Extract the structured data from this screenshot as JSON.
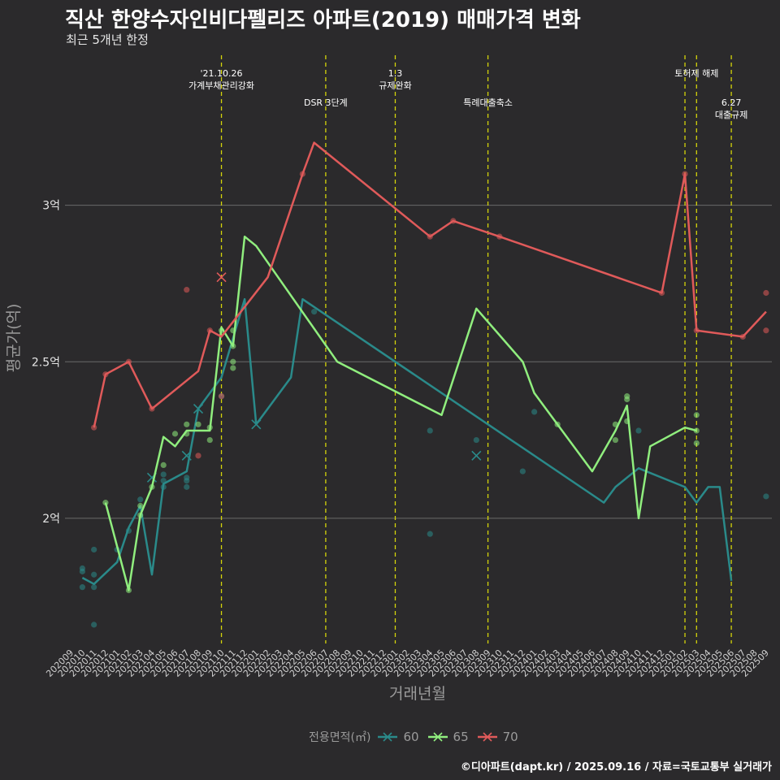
{
  "title": "직산 한양수자인비다펠리즈 아파트(2019) 매매가격 변화",
  "subtitle": "최근 5개년 한정",
  "caption": "©디아파트(dapt.kr) / 2025.09.16 / 자료=국토교통부 실거래가",
  "chart_data": {
    "type": "line",
    "xlabel": "거래년월",
    "ylabel": "평균가(억)",
    "ylim": [
      1.6,
      3.5
    ],
    "grid": true,
    "legend_position": "bottom",
    "legend_title": "전용면적(㎡)",
    "categories": [
      "202009",
      "202010",
      "202011",
      "202012",
      "202101",
      "202102",
      "202103",
      "202104",
      "202105",
      "202106",
      "202107",
      "202108",
      "202109",
      "202110",
      "202111",
      "202112",
      "202201",
      "202202",
      "202203",
      "202204",
      "202205",
      "202206",
      "202207",
      "202208",
      "202209",
      "202210",
      "202211",
      "202212",
      "202301",
      "202302",
      "202303",
      "202304",
      "202305",
      "202306",
      "202307",
      "202308",
      "202309",
      "202310",
      "202311",
      "202312",
      "202401",
      "202402",
      "202403",
      "202404",
      "202405",
      "202406",
      "202407",
      "202408",
      "202409",
      "202410",
      "202411",
      "202412",
      "202501",
      "202502",
      "202503",
      "202504",
      "202505",
      "202506",
      "202507",
      "202508",
      "202509"
    ],
    "yticks": [
      {
        "value": 2.0,
        "label": "2억"
      },
      {
        "value": 2.5,
        "label": "2.5억"
      },
      {
        "value": 3.0,
        "label": "3억"
      }
    ],
    "events": [
      {
        "x": "202110",
        "label": "'21.10.26\n가계부채관리강화",
        "level": 0
      },
      {
        "x": "202207",
        "label": "DSR 3단계",
        "level": 1
      },
      {
        "x": "202301",
        "label": "1.3\n규제완화",
        "level": 0
      },
      {
        "x": "202309",
        "label": "특례대출축소",
        "level": 1
      },
      {
        "x": "202502",
        "label": "",
        "level": 0
      },
      {
        "x": "202503",
        "label": "토허제 해제",
        "level": 0
      },
      {
        "x": "202506",
        "label": "6.27\n대출규제",
        "level": 1
      }
    ],
    "series": [
      {
        "name": "60",
        "color": "#2a8a8a",
        "line": [
          [
            "202010",
            1.81
          ],
          [
            "202011",
            1.79
          ],
          [
            "202101",
            1.86
          ],
          [
            "202102",
            1.97
          ],
          [
            "202103",
            2.04
          ],
          [
            "202104",
            1.82
          ],
          [
            "202105",
            2.11
          ],
          [
            "202107",
            2.15
          ],
          [
            "202108",
            2.35
          ],
          [
            "202110",
            2.45
          ],
          [
            "202112",
            2.7
          ],
          [
            "202201",
            2.3
          ],
          [
            "202204",
            2.45
          ],
          [
            "202205",
            2.7
          ],
          [
            "202407",
            2.05
          ],
          [
            "202408",
            2.1
          ],
          [
            "202409",
            2.13
          ],
          [
            "202410",
            2.16
          ],
          [
            "202502",
            2.1
          ],
          [
            "202503",
            2.05
          ],
          [
            "202504",
            2.1
          ],
          [
            "202505",
            2.1
          ],
          [
            "202506",
            1.8
          ]
        ],
        "points": [
          [
            "202010",
            1.84
          ],
          [
            "202010",
            1.83
          ],
          [
            "202010",
            1.78
          ],
          [
            "202011",
            1.9
          ],
          [
            "202011",
            1.82
          ],
          [
            "202011",
            1.78
          ],
          [
            "202011",
            1.66
          ],
          [
            "202101",
            1.9
          ],
          [
            "202102",
            1.96
          ],
          [
            "202103",
            2.06
          ],
          [
            "202105",
            2.12
          ],
          [
            "202105",
            2.1
          ],
          [
            "202105",
            2.14
          ],
          [
            "202107",
            2.13
          ],
          [
            "202107",
            2.12
          ],
          [
            "202107",
            2.1
          ],
          [
            "202110",
            2.39
          ],
          [
            "202206",
            2.66
          ],
          [
            "202304",
            2.28
          ],
          [
            "202304",
            1.95
          ],
          [
            "202308",
            2.25
          ],
          [
            "202312",
            2.15
          ],
          [
            "202401",
            2.34
          ],
          [
            "202410",
            2.28
          ],
          [
            "202509",
            2.07
          ]
        ],
        "crosses": [
          [
            "202104",
            2.13
          ],
          [
            "202107",
            2.2
          ],
          [
            "202108",
            2.35
          ],
          [
            "202201",
            2.3
          ],
          [
            "202308",
            2.2
          ]
        ]
      },
      {
        "name": "65",
        "color": "#90ee7e",
        "line": [
          [
            "202012",
            2.05
          ],
          [
            "202102",
            1.77
          ],
          [
            "202103",
            2.01
          ],
          [
            "202104",
            2.1
          ],
          [
            "202105",
            2.26
          ],
          [
            "202106",
            2.23
          ],
          [
            "202107",
            2.28
          ],
          [
            "202109",
            2.28
          ],
          [
            "202110",
            2.61
          ],
          [
            "202111",
            2.55
          ],
          [
            "202112",
            2.9
          ],
          [
            "202201",
            2.87
          ],
          [
            "202208",
            2.5
          ],
          [
            "202305",
            2.33
          ],
          [
            "202308",
            2.67
          ],
          [
            "202312",
            2.5
          ],
          [
            "202401",
            2.4
          ],
          [
            "202406",
            2.15
          ],
          [
            "202408",
            2.28
          ],
          [
            "202409",
            2.36
          ],
          [
            "202410",
            2.0
          ],
          [
            "202411",
            2.23
          ],
          [
            "202502",
            2.29
          ],
          [
            "202503",
            2.28
          ]
        ],
        "points": [
          [
            "202012",
            2.05
          ],
          [
            "202102",
            1.77
          ],
          [
            "202103",
            2.04
          ],
          [
            "202103",
            2.01
          ],
          [
            "202104",
            2.1
          ],
          [
            "202105",
            2.17
          ],
          [
            "202106",
            2.27
          ],
          [
            "202107",
            2.3
          ],
          [
            "202107",
            2.27
          ],
          [
            "202108",
            2.3
          ],
          [
            "202109",
            2.29
          ],
          [
            "202109",
            2.25
          ],
          [
            "202110",
            2.6
          ],
          [
            "202111",
            2.6
          ],
          [
            "202111",
            2.48
          ],
          [
            "202111",
            2.5
          ],
          [
            "202111",
            2.55
          ],
          [
            "202403",
            2.3
          ],
          [
            "202408",
            2.3
          ],
          [
            "202408",
            2.25
          ],
          [
            "202409",
            2.38
          ],
          [
            "202409",
            2.39
          ],
          [
            "202409",
            2.31
          ],
          [
            "202503",
            2.33
          ],
          [
            "202503",
            2.24
          ],
          [
            "202503",
            2.28
          ]
        ],
        "crosses": []
      },
      {
        "name": "70",
        "color": "#e05a5a",
        "line": [
          [
            "202011",
            2.29
          ],
          [
            "202012",
            2.46
          ],
          [
            "202102",
            2.5
          ],
          [
            "202104",
            2.35
          ],
          [
            "202108",
            2.47
          ],
          [
            "202109",
            2.6
          ],
          [
            "202110",
            2.58
          ],
          [
            "202202",
            2.77
          ],
          [
            "202205",
            3.1
          ],
          [
            "202206",
            3.2
          ],
          [
            "202304",
            2.9
          ],
          [
            "202306",
            2.95
          ],
          [
            "202310",
            2.9
          ],
          [
            "202412",
            2.72
          ],
          [
            "202502",
            3.1
          ],
          [
            "202503",
            2.6
          ],
          [
            "202507",
            2.58
          ],
          [
            "202509",
            2.66
          ]
        ],
        "points": [
          [
            "202011",
            2.29
          ],
          [
            "202012",
            2.46
          ],
          [
            "202102",
            2.5
          ],
          [
            "202104",
            2.35
          ],
          [
            "202107",
            2.73
          ],
          [
            "202108",
            2.2
          ],
          [
            "202109",
            2.6
          ],
          [
            "202110",
            2.39
          ],
          [
            "202205",
            3.1
          ],
          [
            "202304",
            2.9
          ],
          [
            "202306",
            2.95
          ],
          [
            "202310",
            2.9
          ],
          [
            "202412",
            2.72
          ],
          [
            "202502",
            3.1
          ],
          [
            "202503",
            2.6
          ],
          [
            "202507",
            2.58
          ],
          [
            "202509",
            2.72
          ],
          [
            "202509",
            2.6
          ]
        ],
        "crosses": [
          [
            "202110",
            2.77
          ]
        ]
      }
    ]
  }
}
